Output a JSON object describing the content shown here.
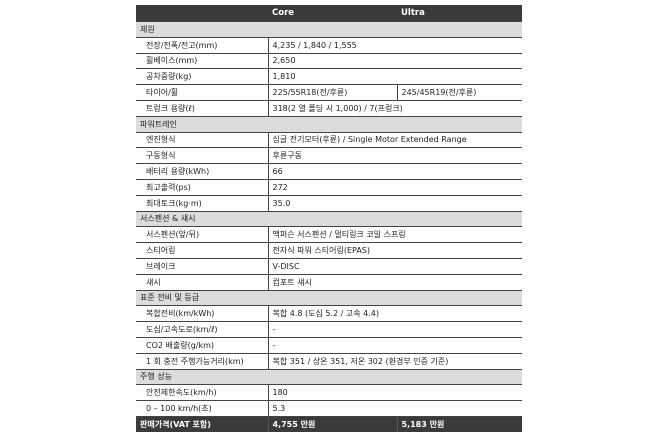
{
  "header": {
    "core": "Core",
    "ultra": "Ultra"
  },
  "sections": [
    {
      "title": "제원",
      "rows": [
        {
          "label": "전장/전폭/전고(mm)",
          "value": "4,235 / 1,840 / 1,555"
        },
        {
          "label": "휠베이스(mm)",
          "value": "2,650"
        },
        {
          "label": "공차중량(kg)",
          "value": "1,810"
        },
        {
          "label": "타이어/휠",
          "core": "225/55R18(전/후륜)",
          "ultra": "245/45R19(전/후륜)"
        },
        {
          "label": "트렁크 용량(ℓ)",
          "value": "318(2 열 폴딩 시 1,000) / 7(프렁크)"
        }
      ]
    },
    {
      "title": "파워트레인",
      "rows": [
        {
          "label": "엔진형식",
          "value": "싱글 전기모터(후륜) / Single Motor Extended Range"
        },
        {
          "label": "구동형식",
          "value": "후륜구동"
        },
        {
          "label": "배터리 용량(kWh)",
          "value": "66"
        },
        {
          "label": "최고출력(ps)",
          "value": "272"
        },
        {
          "label": "최대토크(kg·m)",
          "value": "35.0"
        }
      ]
    },
    {
      "title": "서스펜션 & 섀시",
      "rows": [
        {
          "label": "서스펜션(앞/뒤)",
          "value": "맥퍼슨 서스펜션 / 멀티링크 코일 스프링"
        },
        {
          "label": "스티어링",
          "value": "전자식 파워 스티어링(EPAS)"
        },
        {
          "label": "브레이크",
          "value": "V-DISC"
        },
        {
          "label": "섀시",
          "value": "컴포트 섀시"
        }
      ]
    },
    {
      "title": "표준 전비 및 등급",
      "rows": [
        {
          "label": "복합전비(km/kWh)",
          "value": "복합 4.8 (도심 5.2 / 고속 4.4)"
        },
        {
          "label": "도심/고속도로(km/ℓ)",
          "value": "-"
        },
        {
          "label": "CO2 배출량(g/km)",
          "value": "-"
        },
        {
          "label": "1 회 충전 주행가능거리(km)",
          "value": "복합 351 / 상온 351, 저온 302 (환경부 인증 기준)"
        }
      ]
    },
    {
      "title": "주행 성능",
      "rows": [
        {
          "label": "안전제한속도(km/h)",
          "value": "180"
        },
        {
          "label": "0 – 100 km/h(초)",
          "value": "5.3"
        }
      ]
    }
  ],
  "price": {
    "label": "판매가격(VAT 포함)",
    "core": "4,755 만원",
    "ultra": "5,183 만원"
  }
}
